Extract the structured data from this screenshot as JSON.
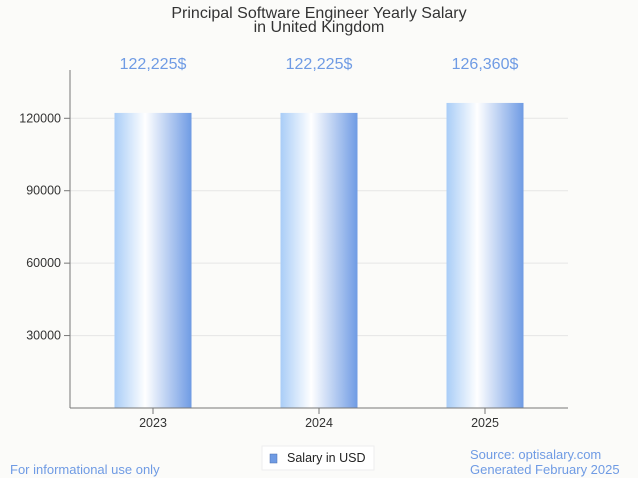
{
  "chart_data": {
    "type": "bar",
    "title": "Principal Software Engineer Yearly Salary",
    "subtitle": "in United Kingdom",
    "categories": [
      "2023",
      "2024",
      "2025"
    ],
    "series": [
      {
        "name": "Salary in USD",
        "values": [
          122225,
          122225,
          126360
        ],
        "data_labels": [
          "122,225$",
          "122,225$",
          "126,360$"
        ]
      }
    ],
    "y_ticks": [
      30000,
      60000,
      90000,
      120000
    ],
    "ylim": [
      0,
      140000
    ],
    "grid": true,
    "legend_position": "bottom-center",
    "bar_color": "#6f9be4"
  },
  "footer": {
    "left": "For informational use only",
    "source": "Source: optisalary.com",
    "generated": "Generated February 2025"
  }
}
